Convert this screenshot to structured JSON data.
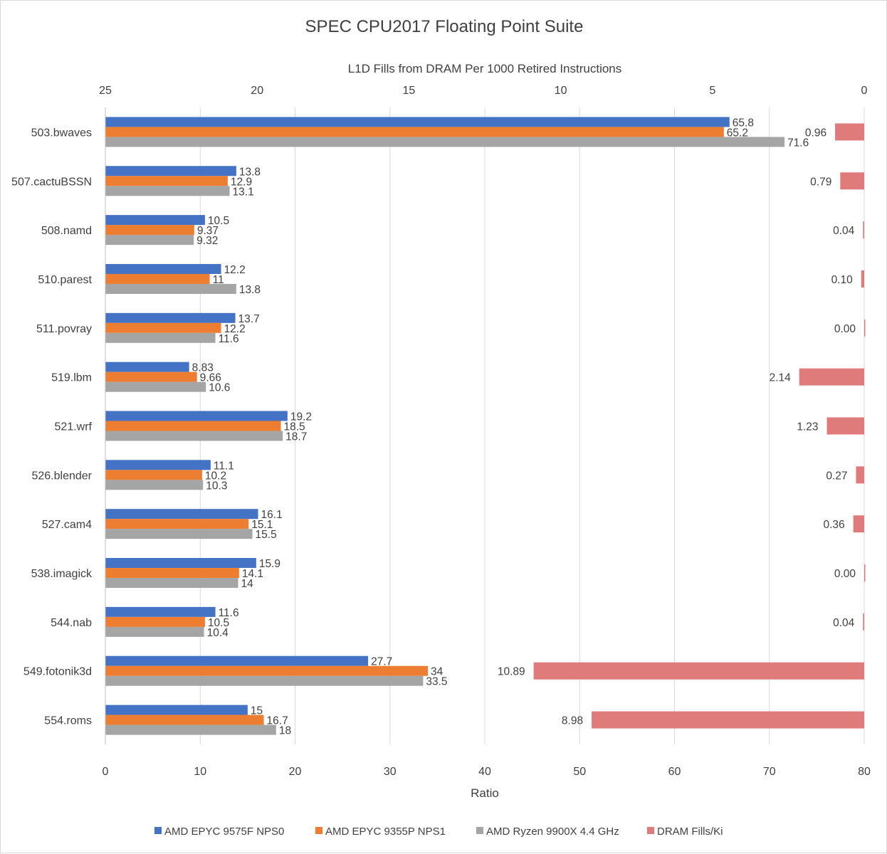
{
  "chart_data": {
    "type": "bar",
    "orientation": "horizontal",
    "title": "SPEC CPU2017 Floating Point Suite",
    "xlabel": "Ratio",
    "xlim": [
      0,
      80
    ],
    "x_ticks": [
      0,
      10,
      20,
      30,
      40,
      50,
      60,
      70,
      80
    ],
    "secondary_axis": {
      "label": "L1D Fills from DRAM Per 1000 Retired Instructions",
      "range": [
        25,
        0
      ],
      "ticks": [
        25,
        20,
        15,
        10,
        5,
        0
      ],
      "reversed": true
    },
    "categories": [
      "503.bwaves",
      "507.cactuBSSN",
      "508.namd",
      "510.parest",
      "511.povray",
      "519.lbm",
      "521.wrf",
      "526.blender",
      "527.cam4",
      "538.imagick",
      "544.nab",
      "549.fotonik3d",
      "554.roms"
    ],
    "series": [
      {
        "name": "AMD EPYC 9575F NPS0",
        "color": "#4472c4",
        "axis": "primary",
        "values": [
          65.8,
          13.8,
          10.5,
          12.2,
          13.7,
          8.83,
          19.2,
          11.1,
          16.1,
          15.9,
          11.6,
          27.7,
          15
        ],
        "labels": [
          "65.8",
          "13.8",
          "10.5",
          "12.2",
          "13.7",
          "8.83",
          "19.2",
          "11.1",
          "16.1",
          "15.9",
          "11.6",
          "27.7",
          "15"
        ]
      },
      {
        "name": "AMD EPYC 9355P NPS1",
        "color": "#ed7d31",
        "axis": "primary",
        "values": [
          65.2,
          12.9,
          9.37,
          11,
          12.2,
          9.66,
          18.5,
          10.2,
          15.1,
          14.1,
          10.5,
          34,
          16.7
        ],
        "labels": [
          "65.2",
          "12.9",
          "9.37",
          "11",
          "12.2",
          "9.66",
          "18.5",
          "10.2",
          "15.1",
          "14.1",
          "10.5",
          "34",
          "16.7"
        ]
      },
      {
        "name": "AMD Ryzen 9900X 4.4 GHz",
        "color": "#a5a5a5",
        "axis": "primary",
        "values": [
          71.6,
          13.1,
          9.32,
          13.8,
          11.6,
          10.6,
          18.7,
          10.3,
          15.5,
          14,
          10.4,
          33.5,
          18
        ],
        "labels": [
          "71.6",
          "13.1",
          "9.32",
          "13.8",
          "11.6",
          "10.6",
          "18.7",
          "10.3",
          "15.5",
          "14",
          "10.4",
          "33.5",
          "18"
        ]
      },
      {
        "name": "DRAM Fills/Ki",
        "color": "#e07b7b",
        "axis": "secondary",
        "values": [
          0.96,
          0.79,
          0.04,
          0.1,
          0.0,
          2.14,
          1.23,
          0.27,
          0.36,
          0.0,
          0.04,
          10.89,
          8.98
        ],
        "labels": [
          "0.96",
          "0.79",
          "0.04",
          "0.10",
          "0.00",
          "2.14",
          "1.23",
          "0.27",
          "0.36",
          "0.00",
          "0.04",
          "10.89",
          "8.98"
        ]
      }
    ],
    "legend_position": "bottom",
    "grid": true
  }
}
